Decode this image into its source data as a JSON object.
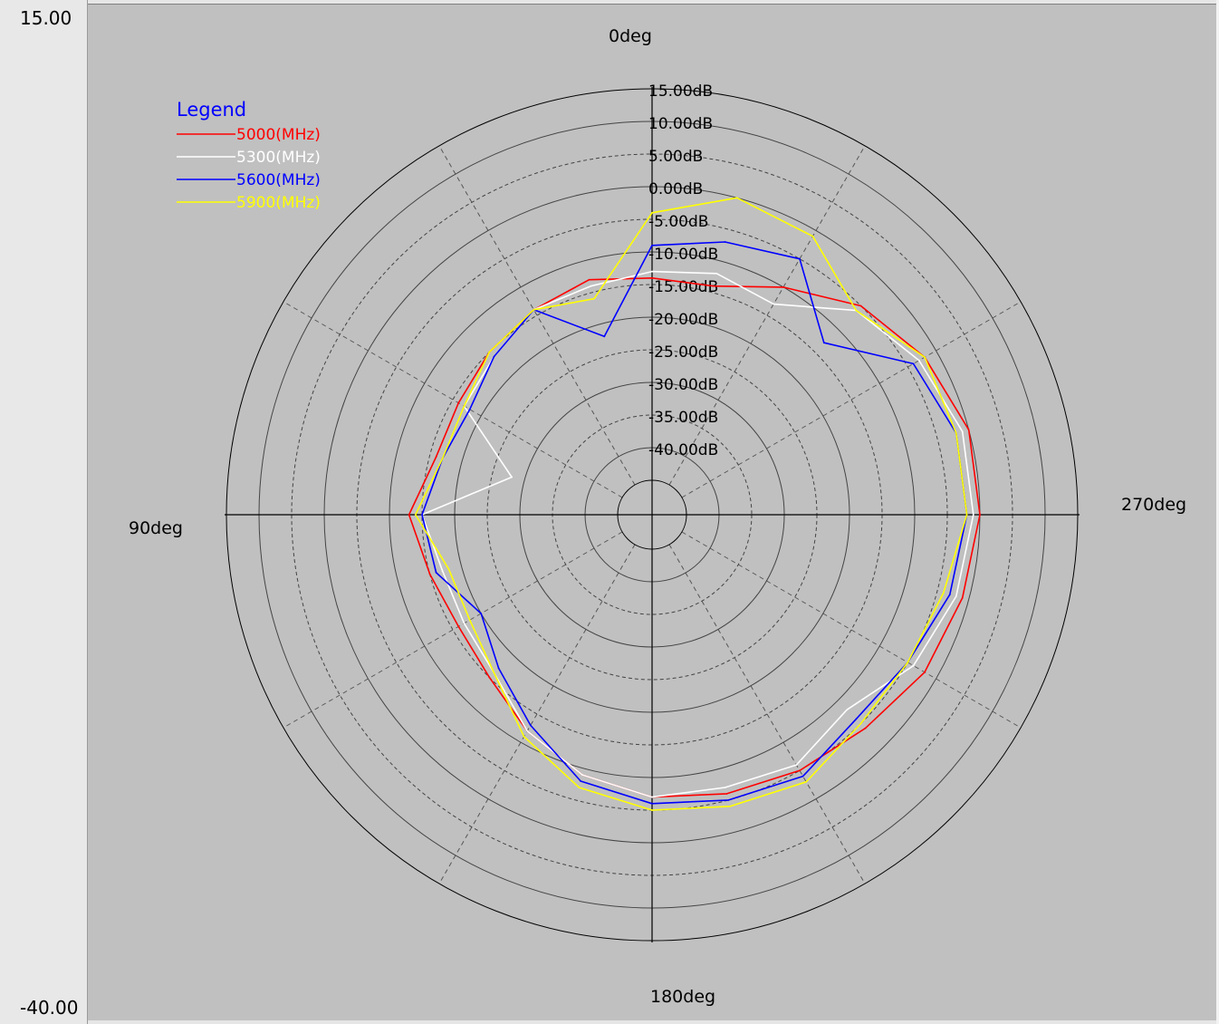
{
  "scale": {
    "max_label": "15.00",
    "min_label": "-40.00"
  },
  "chart_data": {
    "type": "polar",
    "r_min_db": -45,
    "r_max_db": 15,
    "r_ticks": [
      15,
      10,
      5,
      0,
      -5,
      -10,
      -15,
      -20,
      -25,
      -30,
      -35,
      -40
    ],
    "r_tick_labels": [
      "15.00dB",
      "10.00dB",
      "5.00dB",
      "0.00dB",
      "-5.00dB",
      "-10.00dB",
      "-15.00dB",
      "-20.00dB",
      "-25.00dB",
      "-30.00dB",
      "-35.00dB",
      "-40.00dB"
    ],
    "angle_labels": [
      "0deg",
      "90deg",
      "180deg",
      "270deg"
    ],
    "angle_direction": "counterclockwise, 0deg at top",
    "angle_grid_step_deg": 30,
    "legend": {
      "title": "Legend",
      "placement": "top-left"
    },
    "angles_deg": [
      0,
      15,
      30,
      45,
      60,
      75,
      90,
      105,
      120,
      135,
      150,
      165,
      180,
      195,
      210,
      225,
      240,
      255,
      270,
      285,
      300,
      315,
      330,
      345
    ],
    "series": [
      {
        "name": "5000(MHz)",
        "color": "#ff0000",
        "values": [
          -14,
          -13,
          -14,
          -15,
          -16,
          -16,
          -13,
          -15,
          -16,
          -15,
          -12,
          -9,
          -7,
          -6,
          -5,
          -4,
          -2,
          -1,
          0,
          0,
          -2,
          -5,
          -10,
          -14
        ]
      },
      {
        "name": "5300(MHz)",
        "color": "#ffffff",
        "values": [
          -13,
          -14,
          -14,
          -16,
          -17,
          -28,
          -15,
          -17,
          -17,
          -16,
          -12,
          -9,
          -7,
          -7,
          -6,
          -8,
          -4,
          -2,
          -1,
          -1,
          -3,
          -6,
          -13,
          -12
        ]
      },
      {
        "name": "5600(MHz)",
        "color": "#0000ff",
        "values": [
          -9,
          -22,
          -14,
          -16,
          -18,
          -17,
          -15,
          -16,
          -20,
          -17,
          -13,
          -8,
          -6,
          -5,
          -4,
          -6,
          -5,
          -3,
          -2,
          -2,
          -4,
          -13,
          -5,
          -7
        ]
      },
      {
        "name": "5900(MHz)",
        "color": "#ffff00",
        "values": [
          -4,
          -16,
          -14,
          -15,
          -17,
          -17,
          -14,
          -18,
          -18,
          -16,
          -11,
          -7,
          -5,
          -4,
          -3,
          -5,
          -5,
          -4,
          -2,
          -2,
          -2,
          -6,
          -1,
          0
        ]
      }
    ]
  }
}
